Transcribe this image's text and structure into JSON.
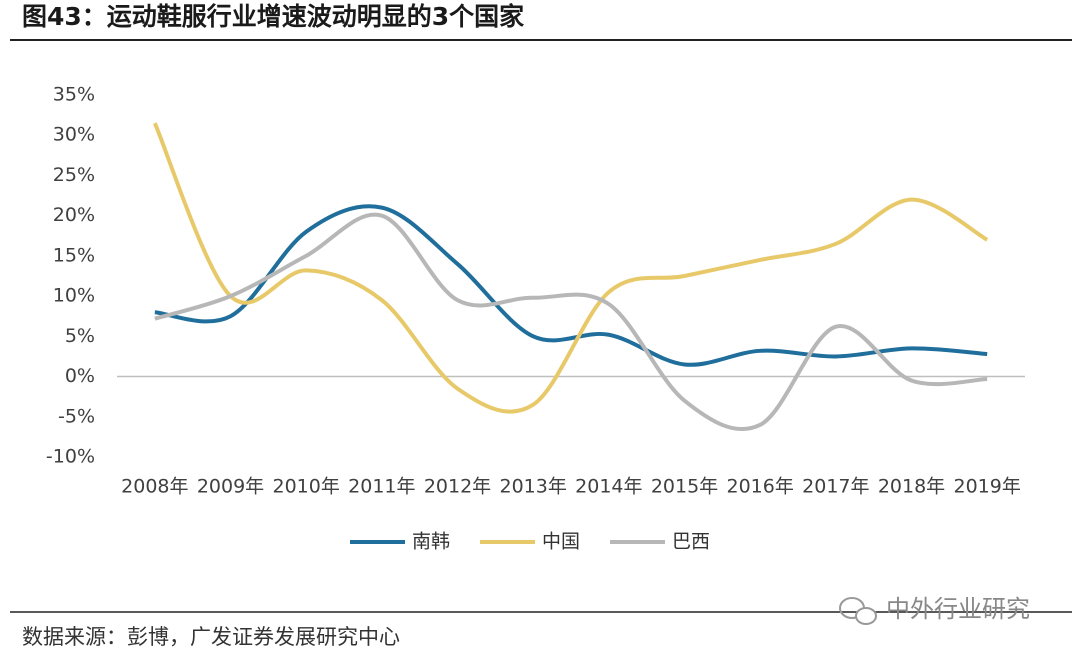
{
  "chart_data": {
    "type": "line",
    "title": "图43：运动鞋服行业增速波动明显的3个国家",
    "source": "数据来源：彭博，广发证券发展研究中心",
    "watermark": "中外行业研究",
    "categories": [
      "2008年",
      "2009年",
      "2010年",
      "2011年",
      "2012年",
      "2013年",
      "2014年",
      "2015年",
      "2016年",
      "2017年",
      "2018年",
      "2019年"
    ],
    "series": [
      {
        "name": "南韩",
        "color": "#1f6e9c",
        "values": [
          8,
          7.5,
          18,
          21,
          14,
          5,
          5.2,
          1.5,
          3.2,
          2.5,
          3.5,
          2.8
        ]
      },
      {
        "name": "中国",
        "color": "#e8c96a",
        "values": [
          31.5,
          10,
          13.2,
          9.5,
          -1.5,
          -3.5,
          10.5,
          12.5,
          14.5,
          16.5,
          22,
          17
        ]
      },
      {
        "name": "巴西",
        "color": "#b7b7b7",
        "values": [
          7.2,
          10,
          15,
          20,
          9.5,
          9.8,
          9,
          -3,
          -6,
          6.2,
          -0.5,
          -0.3
        ]
      }
    ],
    "ylim": [
      -10,
      35
    ],
    "yticks": [
      {
        "value": -10,
        "label": "-10%"
      },
      {
        "value": -5,
        "label": "-5%"
      },
      {
        "value": 0,
        "label": "0%"
      },
      {
        "value": 5,
        "label": "5%"
      },
      {
        "value": 10,
        "label": "10%"
      },
      {
        "value": 15,
        "label": "15%"
      },
      {
        "value": 20,
        "label": "20%"
      },
      {
        "value": 25,
        "label": "25%"
      },
      {
        "value": 30,
        "label": "30%"
      },
      {
        "value": 35,
        "label": "35%"
      }
    ],
    "grid": false,
    "smooth": true,
    "legend": "bottom"
  }
}
